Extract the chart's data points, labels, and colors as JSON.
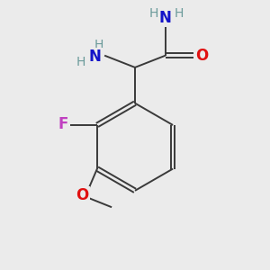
{
  "bg_color": "#ebebeb",
  "bond_color": "#3a3a3a",
  "atom_colors": {
    "N": "#1414c8",
    "O": "#e01010",
    "F": "#c040c0",
    "C": "#3a3a3a",
    "H": "#6a9a9a"
  },
  "font_size_large": 12,
  "font_size_small": 10,
  "lw": 1.4
}
